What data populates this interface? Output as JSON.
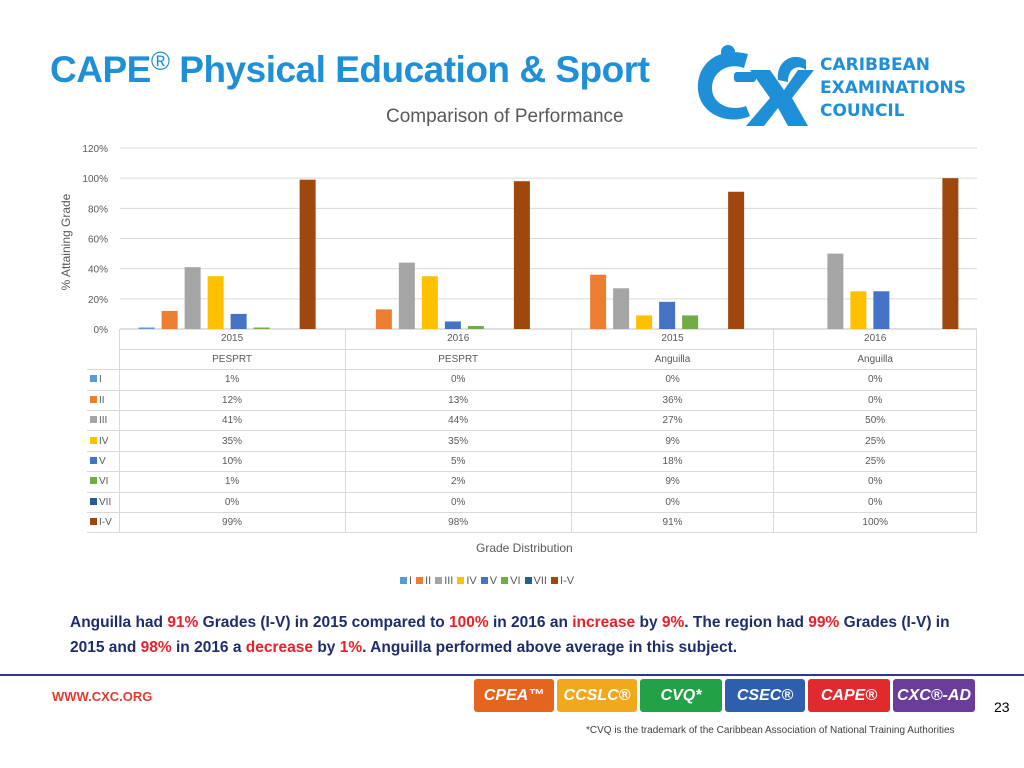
{
  "slide": {
    "title": "CAPE",
    "title_mark": "®",
    "title_rest": " Physical Education & Sport",
    "summary_parts": [
      {
        "t": "Anguilla had ",
        "c": "n"
      },
      {
        "t": "91%",
        "c": "r"
      },
      {
        "t": " Grades (I-V) in 2015 compared to ",
        "c": "n"
      },
      {
        "t": "100%",
        "c": "r"
      },
      {
        "t": " in 2016 an ",
        "c": "n"
      },
      {
        "t": "increase",
        "c": "r"
      },
      {
        "t": " by ",
        "c": "n"
      },
      {
        "t": "9%",
        "c": "r"
      },
      {
        "t": ". The region had ",
        "c": "n"
      },
      {
        "t": "99%",
        "c": "r"
      },
      {
        "t": " Grades (I-V) in 2015 and ",
        "c": "n"
      },
      {
        "t": "98%",
        "c": "r"
      },
      {
        "t": " in 2016 a ",
        "c": "n"
      },
      {
        "t": "decrease",
        "c": "r"
      },
      {
        "t": " by ",
        "c": "n"
      },
      {
        "t": "1%",
        "c": "r"
      },
      {
        "t": ". Anguilla performed above average in this subject.",
        "c": "n"
      }
    ],
    "page_number": "23"
  },
  "logo": {
    "mark_text": "CXC",
    "lines": [
      "CARIBBEAN",
      "EXAMINATIONS",
      "COUNCIL"
    ]
  },
  "footer": {
    "url": "WWW.CXC.ORG",
    "brands": [
      {
        "label": "CPEA™",
        "color": "#e6651e"
      },
      {
        "label": "CCSLC®",
        "color": "#f2a81d"
      },
      {
        "label": "CVQ*",
        "color": "#22a147"
      },
      {
        "label": "CSEC®",
        "color": "#2e5fae"
      },
      {
        "label": "CAPE®",
        "color": "#e12a2e"
      },
      {
        "label": "CXC®-AD",
        "color": "#6b3d9a"
      }
    ],
    "footnote": "*CVQ is the trademark of the Caribbean Association of National Training Authorities"
  },
  "chart_data": {
    "type": "bar",
    "title": "Comparison of Performance",
    "ylabel": "% Attaining Grade",
    "xlabel": "Grade Distribution",
    "ylim": [
      0,
      120
    ],
    "yticks": [
      "0%",
      "20%",
      "40%",
      "60%",
      "80%",
      "100%",
      "120%"
    ],
    "grid": true,
    "legend_position": "bottom",
    "categories": [
      {
        "year": "2015",
        "group": "PESPRT"
      },
      {
        "year": "2016",
        "group": "PESPRT"
      },
      {
        "year": "2015",
        "group": "Anguilla"
      },
      {
        "year": "2016",
        "group": "Anguilla"
      }
    ],
    "series": [
      {
        "name": "I",
        "color": "#5b9bd5",
        "values": [
          1,
          0,
          0,
          0
        ],
        "labels": [
          "1%",
          "0%",
          "0%",
          "0%"
        ]
      },
      {
        "name": "II",
        "color": "#ed7d31",
        "values": [
          12,
          13,
          36,
          0
        ],
        "labels": [
          "12%",
          "13%",
          "36%",
          "0%"
        ]
      },
      {
        "name": "III",
        "color": "#a5a5a5",
        "values": [
          41,
          44,
          27,
          50
        ],
        "labels": [
          "41%",
          "44%",
          "27%",
          "50%"
        ]
      },
      {
        "name": "IV",
        "color": "#ffc000",
        "values": [
          35,
          35,
          9,
          25
        ],
        "labels": [
          "35%",
          "35%",
          "9%",
          "25%"
        ]
      },
      {
        "name": "V",
        "color": "#4472c4",
        "values": [
          10,
          5,
          18,
          25
        ],
        "labels": [
          "10%",
          "5%",
          "18%",
          "25%"
        ]
      },
      {
        "name": "VI",
        "color": "#70ad47",
        "values": [
          1,
          2,
          9,
          0
        ],
        "labels": [
          "1%",
          "2%",
          "9%",
          "0%"
        ]
      },
      {
        "name": "VII",
        "color": "#255e91",
        "values": [
          0,
          0,
          0,
          0
        ],
        "labels": [
          "0%",
          "0%",
          "0%",
          "0%"
        ]
      },
      {
        "name": "I-V",
        "color": "#9e480e",
        "values": [
          99,
          98,
          91,
          100
        ],
        "labels": [
          "99%",
          "98%",
          "91%",
          "100%"
        ]
      }
    ]
  }
}
